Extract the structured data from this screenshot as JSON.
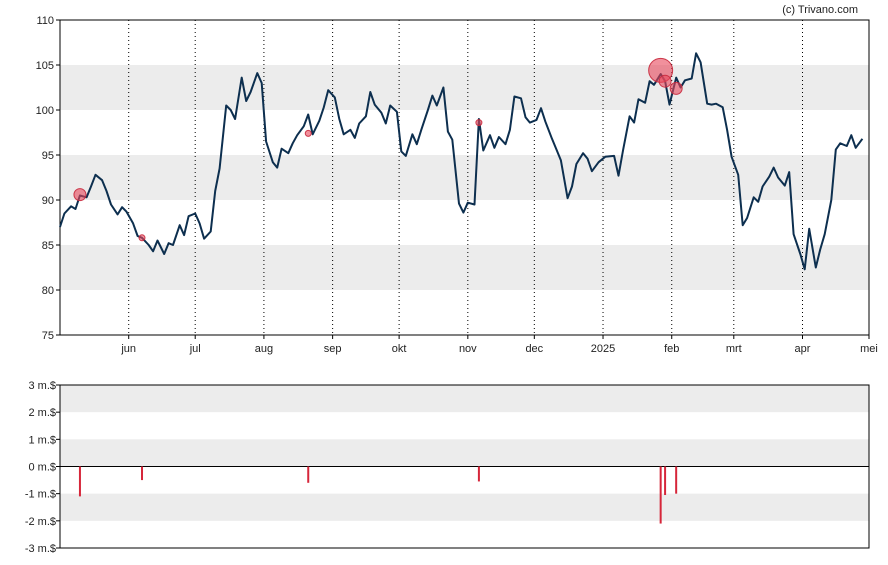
{
  "credit": "(c) Trivano.com",
  "chart_data": [
    {
      "type": "line",
      "title": "",
      "ylim": [
        75,
        110
      ],
      "y_ticks": [
        "75",
        "80",
        "85",
        "90",
        "95",
        "100",
        "105",
        "110"
      ],
      "x_ticks": [
        {
          "label": "jun",
          "date": "2024-06-01"
        },
        {
          "label": "jul",
          "date": "2024-07-01"
        },
        {
          "label": "aug",
          "date": "2024-08-01"
        },
        {
          "label": "sep",
          "date": "2024-09-01"
        },
        {
          "label": "okt",
          "date": "2024-10-01"
        },
        {
          "label": "nov",
          "date": "2024-11-01"
        },
        {
          "label": "dec",
          "date": "2024-12-01"
        },
        {
          "label": "2025",
          "date": "2025-01-01"
        },
        {
          "label": "feb",
          "date": "2025-02-01"
        },
        {
          "label": "mrt",
          "date": "2025-03-01"
        },
        {
          "label": "apr",
          "date": "2025-04-01"
        },
        {
          "label": "mei",
          "date": "2025-05-01"
        }
      ],
      "xlim": [
        "2024-05-01",
        "2025-05-01"
      ],
      "grid": "vertical dotted at month starts, alternating horizontal bands",
      "series": [
        {
          "color": "#0d2f4f",
          "points": [
            [
              "2024-05-01",
              87.0
            ],
            [
              "2024-05-03",
              88.5
            ],
            [
              "2024-05-06",
              89.3
            ],
            [
              "2024-05-08",
              89.0
            ],
            [
              "2024-05-10",
              90.5
            ],
            [
              "2024-05-13",
              90.3
            ],
            [
              "2024-05-15",
              91.5
            ],
            [
              "2024-05-17",
              92.8
            ],
            [
              "2024-05-20",
              92.2
            ],
            [
              "2024-05-22",
              91.0
            ],
            [
              "2024-05-24",
              89.5
            ],
            [
              "2024-05-27",
              88.4
            ],
            [
              "2024-05-29",
              89.2
            ],
            [
              "2024-05-31",
              88.7
            ],
            [
              "2024-06-03",
              87.4
            ],
            [
              "2024-06-05",
              86.0
            ],
            [
              "2024-06-07",
              85.8
            ],
            [
              "2024-06-10",
              85.0
            ],
            [
              "2024-06-12",
              84.3
            ],
            [
              "2024-06-14",
              85.5
            ],
            [
              "2024-06-17",
              84.0
            ],
            [
              "2024-06-19",
              85.2
            ],
            [
              "2024-06-21",
              85.0
            ],
            [
              "2024-06-24",
              87.2
            ],
            [
              "2024-06-26",
              86.1
            ],
            [
              "2024-06-28",
              88.2
            ],
            [
              "2024-07-01",
              88.5
            ],
            [
              "2024-07-03",
              87.4
            ],
            [
              "2024-07-05",
              85.7
            ],
            [
              "2024-07-08",
              86.5
            ],
            [
              "2024-07-10",
              91.0
            ],
            [
              "2024-07-12",
              93.5
            ],
            [
              "2024-07-15",
              100.5
            ],
            [
              "2024-07-17",
              100.0
            ],
            [
              "2024-07-19",
              99.0
            ],
            [
              "2024-07-22",
              103.6
            ],
            [
              "2024-07-24",
              101.0
            ],
            [
              "2024-07-26",
              102.0
            ],
            [
              "2024-07-29",
              104.1
            ],
            [
              "2024-07-31",
              103.0
            ],
            [
              "2024-08-02",
              96.5
            ],
            [
              "2024-08-05",
              94.2
            ],
            [
              "2024-08-07",
              93.6
            ],
            [
              "2024-08-09",
              95.7
            ],
            [
              "2024-08-12",
              95.2
            ],
            [
              "2024-08-14",
              96.3
            ],
            [
              "2024-08-16",
              97.2
            ],
            [
              "2024-08-19",
              98.2
            ],
            [
              "2024-08-21",
              99.5
            ],
            [
              "2024-08-23",
              97.3
            ],
            [
              "2024-08-26",
              98.8
            ],
            [
              "2024-08-28",
              100.3
            ],
            [
              "2024-08-30",
              102.2
            ],
            [
              "2024-09-02",
              101.4
            ],
            [
              "2024-09-04",
              99.0
            ],
            [
              "2024-09-06",
              97.3
            ],
            [
              "2024-09-09",
              97.8
            ],
            [
              "2024-09-11",
              96.9
            ],
            [
              "2024-09-13",
              98.5
            ],
            [
              "2024-09-16",
              99.3
            ],
            [
              "2024-09-18",
              102.0
            ],
            [
              "2024-09-20",
              100.6
            ],
            [
              "2024-09-23",
              99.7
            ],
            [
              "2024-09-25",
              98.5
            ],
            [
              "2024-09-27",
              100.5
            ],
            [
              "2024-09-30",
              99.8
            ],
            [
              "2024-10-02",
              95.4
            ],
            [
              "2024-10-04",
              94.9
            ],
            [
              "2024-10-07",
              97.3
            ],
            [
              "2024-10-09",
              96.2
            ],
            [
              "2024-10-11",
              97.8
            ],
            [
              "2024-10-14",
              100.0
            ],
            [
              "2024-10-16",
              101.6
            ],
            [
              "2024-10-18",
              100.5
            ],
            [
              "2024-10-21",
              102.5
            ],
            [
              "2024-10-23",
              97.6
            ],
            [
              "2024-10-25",
              96.7
            ],
            [
              "2024-10-28",
              89.6
            ],
            [
              "2024-10-30",
              88.6
            ],
            [
              "2024-11-01",
              89.7
            ],
            [
              "2024-11-04",
              89.5
            ],
            [
              "2024-11-06",
              99.0
            ],
            [
              "2024-11-08",
              95.5
            ],
            [
              "2024-11-11",
              97.2
            ],
            [
              "2024-11-13",
              95.8
            ],
            [
              "2024-11-15",
              97.0
            ],
            [
              "2024-11-18",
              96.2
            ],
            [
              "2024-11-20",
              97.8
            ],
            [
              "2024-11-22",
              101.5
            ],
            [
              "2024-11-25",
              101.3
            ],
            [
              "2024-11-27",
              99.2
            ],
            [
              "2024-11-29",
              98.6
            ],
            [
              "2024-12-02",
              98.9
            ],
            [
              "2024-12-04",
              100.2
            ],
            [
              "2024-12-06",
              98.7
            ],
            [
              "2024-12-09",
              96.8
            ],
            [
              "2024-12-11",
              95.6
            ],
            [
              "2024-12-13",
              94.4
            ],
            [
              "2024-12-16",
              90.2
            ],
            [
              "2024-12-18",
              91.5
            ],
            [
              "2024-12-20",
              94.0
            ],
            [
              "2024-12-23",
              95.2
            ],
            [
              "2024-12-25",
              94.6
            ],
            [
              "2024-12-27",
              93.2
            ],
            [
              "2024-12-30",
              94.2
            ],
            [
              "2025-01-02",
              94.8
            ],
            [
              "2025-01-06",
              94.9
            ],
            [
              "2025-01-08",
              92.7
            ],
            [
              "2025-01-10",
              95.5
            ],
            [
              "2025-01-13",
              99.3
            ],
            [
              "2025-01-15",
              98.6
            ],
            [
              "2025-01-17",
              101.2
            ],
            [
              "2025-01-20",
              100.8
            ],
            [
              "2025-01-22",
              103.2
            ],
            [
              "2025-01-24",
              102.8
            ],
            [
              "2025-01-27",
              104.0
            ],
            [
              "2025-01-29",
              103.2
            ],
            [
              "2025-01-31",
              100.6
            ],
            [
              "2025-02-03",
              103.6
            ],
            [
              "2025-02-05",
              102.5
            ],
            [
              "2025-02-07",
              103.3
            ],
            [
              "2025-02-10",
              103.5
            ],
            [
              "2025-02-12",
              106.3
            ],
            [
              "2025-02-14",
              105.3
            ],
            [
              "2025-02-17",
              100.7
            ],
            [
              "2025-02-19",
              100.6
            ],
            [
              "2025-02-21",
              100.7
            ],
            [
              "2025-02-24",
              100.3
            ],
            [
              "2025-02-26",
              97.8
            ],
            [
              "2025-02-28",
              94.8
            ],
            [
              "2025-03-03",
              92.8
            ],
            [
              "2025-03-05",
              87.2
            ],
            [
              "2025-03-07",
              88.0
            ],
            [
              "2025-03-10",
              90.3
            ],
            [
              "2025-03-12",
              89.8
            ],
            [
              "2025-03-14",
              91.5
            ],
            [
              "2025-03-17",
              92.6
            ],
            [
              "2025-03-19",
              93.6
            ],
            [
              "2025-03-21",
              92.5
            ],
            [
              "2025-03-24",
              91.6
            ],
            [
              "2025-03-26",
              93.1
            ],
            [
              "2025-03-28",
              86.2
            ],
            [
              "2025-03-31",
              84.0
            ],
            [
              "2025-04-02",
              82.3
            ],
            [
              "2025-04-04",
              86.8
            ],
            [
              "2025-04-07",
              82.5
            ],
            [
              "2025-04-09",
              84.5
            ],
            [
              "2025-04-11",
              86.2
            ],
            [
              "2025-04-14",
              90.0
            ],
            [
              "2025-04-16",
              95.6
            ],
            [
              "2025-04-18",
              96.3
            ],
            [
              "2025-04-21",
              96.0
            ],
            [
              "2025-04-23",
              97.2
            ],
            [
              "2025-04-25",
              95.8
            ],
            [
              "2025-04-28",
              96.8
            ]
          ]
        }
      ],
      "markers": [
        {
          "date": "2024-05-10",
          "value": 90.6,
          "size": "medium"
        },
        {
          "date": "2024-06-07",
          "value": 85.8,
          "size": "small"
        },
        {
          "date": "2024-08-21",
          "value": 97.4,
          "size": "small"
        },
        {
          "date": "2024-11-06",
          "value": 98.6,
          "size": "small"
        },
        {
          "date": "2025-01-27",
          "value": 104.4,
          "size": "large"
        },
        {
          "date": "2025-01-29",
          "value": 103.2,
          "size": "medium"
        },
        {
          "date": "2025-02-03",
          "value": 102.4,
          "size": "medium"
        }
      ]
    },
    {
      "type": "bar",
      "title": "",
      "ylim": [
        -3,
        3
      ],
      "y_ticks": [
        "3 m.$",
        "2 m.$",
        "1 m.$",
        "0 m.$",
        "-1 m.$",
        "-2 m.$",
        "-3 m.$"
      ],
      "xlim": [
        "2024-05-01",
        "2025-05-01"
      ],
      "bar_color": "#d6263a",
      "bars": [
        {
          "date": "2024-05-10",
          "value": -1.1
        },
        {
          "date": "2024-06-07",
          "value": -0.5
        },
        {
          "date": "2024-08-21",
          "value": -0.6
        },
        {
          "date": "2024-11-06",
          "value": -0.55
        },
        {
          "date": "2025-01-27",
          "value": -2.1
        },
        {
          "date": "2025-01-29",
          "value": -1.05
        },
        {
          "date": "2025-02-03",
          "value": -1.0
        }
      ]
    }
  ]
}
